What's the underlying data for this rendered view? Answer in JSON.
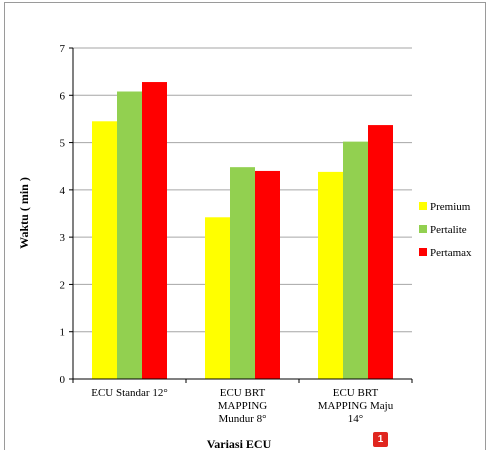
{
  "chart_data": {
    "type": "bar",
    "title": "",
    "xlabel": "Variasi ECU",
    "ylabel": "Waktu ( min )",
    "ylim": [
      0,
      7
    ],
    "yticks": [
      0,
      1,
      2,
      3,
      4,
      5,
      6,
      7
    ],
    "grid": true,
    "legend_position": "right",
    "categories": [
      [
        "ECU Standar 12°"
      ],
      [
        "ECU BRT",
        "MAPPING",
        "Mundur 8°"
      ],
      [
        "ECU BRT",
        "MAPPING Maju",
        "14°"
      ]
    ],
    "series": [
      {
        "name": "Premium",
        "color": "#ffff00",
        "values": [
          5.45,
          3.42,
          4.38
        ]
      },
      {
        "name": "Pertalite",
        "color": "#92d050",
        "values": [
          6.08,
          4.48,
          5.02
        ]
      },
      {
        "name": "Pertamax",
        "color": "#ff0000",
        "values": [
          6.28,
          4.4,
          5.37
        ]
      }
    ]
  },
  "badge": {
    "label": "1",
    "color": "#e0261f"
  }
}
